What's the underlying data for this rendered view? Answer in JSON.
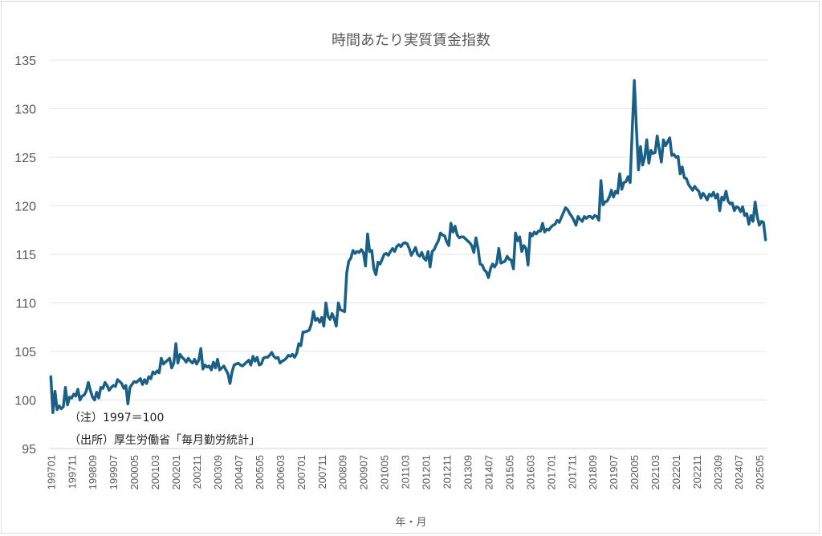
{
  "chart_data": {
    "type": "line",
    "title": "時間あたり実質賃金指数",
    "xlabel": "年・月",
    "ylabel": "",
    "ylim": [
      95,
      135
    ],
    "yticks": [
      95,
      100,
      105,
      110,
      115,
      120,
      125,
      130,
      135
    ],
    "grid": true,
    "start": "199701",
    "x_tick_labels": [
      "199701",
      "199711",
      "199809",
      "199907",
      "200005",
      "200103",
      "200201",
      "200211",
      "200309",
      "200407",
      "200505",
      "200603",
      "200701",
      "200711",
      "200809",
      "200907",
      "201005",
      "201103",
      "201201",
      "201211",
      "201309",
      "201407",
      "201505",
      "201603",
      "201701",
      "201711",
      "201809",
      "201907",
      "202005",
      "202103",
      "202201",
      "202211",
      "202309",
      "202407",
      "202505"
    ],
    "x_tick_every": 10,
    "line_color": "#1a5f85",
    "notes": [
      "（注）1997＝100",
      "（出所）厚生労働省「毎月勤労統計」"
    ],
    "series": [
      {
        "name": "時間あたり実質賃金指数",
        "values": [
          102.4,
          98.7,
          100.9,
          99.0,
          99.4,
          99.1,
          99.3,
          101.3,
          99.5,
          100.3,
          100.2,
          100.6,
          100.4,
          101.1,
          100.0,
          100.4,
          100.5,
          100.9,
          101.8,
          101.0,
          100.3,
          100.0,
          100.8,
          100.2,
          101.3,
          101.2,
          101.8,
          101.5,
          101.0,
          101.3,
          101.5,
          101.4,
          102.1,
          101.9,
          101.7,
          101.2,
          101.5,
          99.6,
          101.3,
          101.6,
          101.9,
          101.8,
          102.0,
          102.2,
          101.6,
          102.1,
          101.7,
          102.4,
          102.2,
          102.9,
          102.7,
          103.0,
          102.8,
          104.3,
          103.7,
          103.9,
          104.1,
          104.3,
          103.3,
          103.8,
          105.8,
          103.8,
          104.7,
          104.4,
          104.2,
          103.9,
          104.3,
          104.0,
          103.8,
          104.2,
          103.7,
          104.1,
          105.3,
          103.2,
          103.6,
          103.4,
          103.5,
          103.1,
          103.9,
          103.3,
          104.2,
          103.1,
          103.3,
          103.5,
          103.1,
          102.7,
          101.7,
          102.9,
          103.6,
          103.7,
          103.8,
          103.6,
          103.5,
          103.7,
          103.9,
          104.1,
          103.6,
          104.5,
          104.0,
          104.4,
          103.6,
          103.7,
          104.3,
          104.4,
          104.4,
          104.6,
          104.9,
          104.5,
          104.3,
          104.4,
          103.8,
          104.0,
          104.1,
          104.3,
          104.6,
          104.5,
          104.7,
          104.4,
          104.8,
          105.8,
          105.6,
          107.0,
          107.0,
          107.1,
          107.2,
          107.8,
          109.1,
          108.2,
          108.4,
          108.0,
          108.5,
          107.6,
          110.0,
          108.6,
          108.3,
          108.9,
          108.4,
          107.6,
          110.0,
          109.3,
          109.2,
          109.1,
          113.1,
          114.3,
          114.6,
          115.4,
          115.1,
          115.3,
          115.2,
          115.5,
          115.2,
          113.8,
          117.1,
          115.3,
          115.4,
          113.5,
          112.9,
          114.2,
          114.0,
          114.5,
          115.0,
          115.1,
          114.9,
          115.3,
          115.6,
          115.3,
          115.8,
          116.0,
          115.8,
          116.1,
          116.2,
          116.1,
          115.6,
          114.9,
          115.3,
          115.7,
          115.0,
          114.8,
          115.2,
          114.6,
          114.4,
          115.3,
          113.7,
          115.3,
          115.5,
          116.0,
          116.4,
          117.2,
          117.0,
          116.9,
          116.3,
          115.9,
          118.2,
          117.3,
          117.9,
          117.0,
          116.7,
          116.8,
          116.8,
          116.6,
          116.4,
          116.2,
          115.9,
          115.2,
          116.7,
          115.6,
          114.0,
          113.9,
          113.4,
          113.2,
          112.6,
          113.5,
          114.0,
          113.7,
          114.1,
          115.6,
          114.1,
          114.2,
          114.3,
          114.8,
          114.5,
          114.4,
          113.5,
          117.2,
          116.4,
          116.8,
          115.3,
          115.9,
          115.6,
          113.9,
          117.2,
          116.9,
          117.3,
          117.1,
          117.4,
          117.4,
          118.2,
          117.3,
          117.6,
          117.5,
          117.8,
          118.0,
          118.1,
          118.5,
          118.3,
          118.8,
          119.3,
          119.8,
          119.6,
          119.2,
          118.9,
          118.5,
          118.0,
          118.9,
          118.6,
          118.4,
          118.9,
          118.7,
          118.9,
          118.9,
          118.7,
          119.0,
          118.9,
          118.5,
          122.6,
          120.1,
          120.4,
          120.5,
          120.9,
          121.6,
          120.9,
          121.5,
          121.3,
          123.3,
          121.7,
          122.4,
          122.5,
          123.0,
          122.4,
          127.8,
          132.9,
          128.0,
          123.7,
          126.1,
          124.2,
          125.0,
          126.8,
          124.4,
          125.7,
          125.4,
          125.5,
          127.2,
          125.8,
          124.5,
          126.8,
          126.2,
          126.6,
          127.0,
          125.2,
          125.3,
          125.0,
          125.1,
          123.3,
          124.0,
          122.9,
          122.8,
          122.2,
          121.9,
          121.6,
          122.0,
          121.7,
          121.5,
          120.8,
          121.3,
          121.0,
          120.6,
          121.2,
          121.0,
          121.4,
          120.8,
          121.2,
          119.5,
          120.9,
          120.6,
          121.5,
          120.5,
          120.2,
          120.3,
          119.5,
          119.9,
          119.8,
          119.4,
          119.9,
          119.0,
          119.2,
          118.1,
          119.0,
          118.4,
          120.4,
          118.9,
          118.0,
          118.4,
          118.3,
          116.5
        ]
      }
    ]
  }
}
